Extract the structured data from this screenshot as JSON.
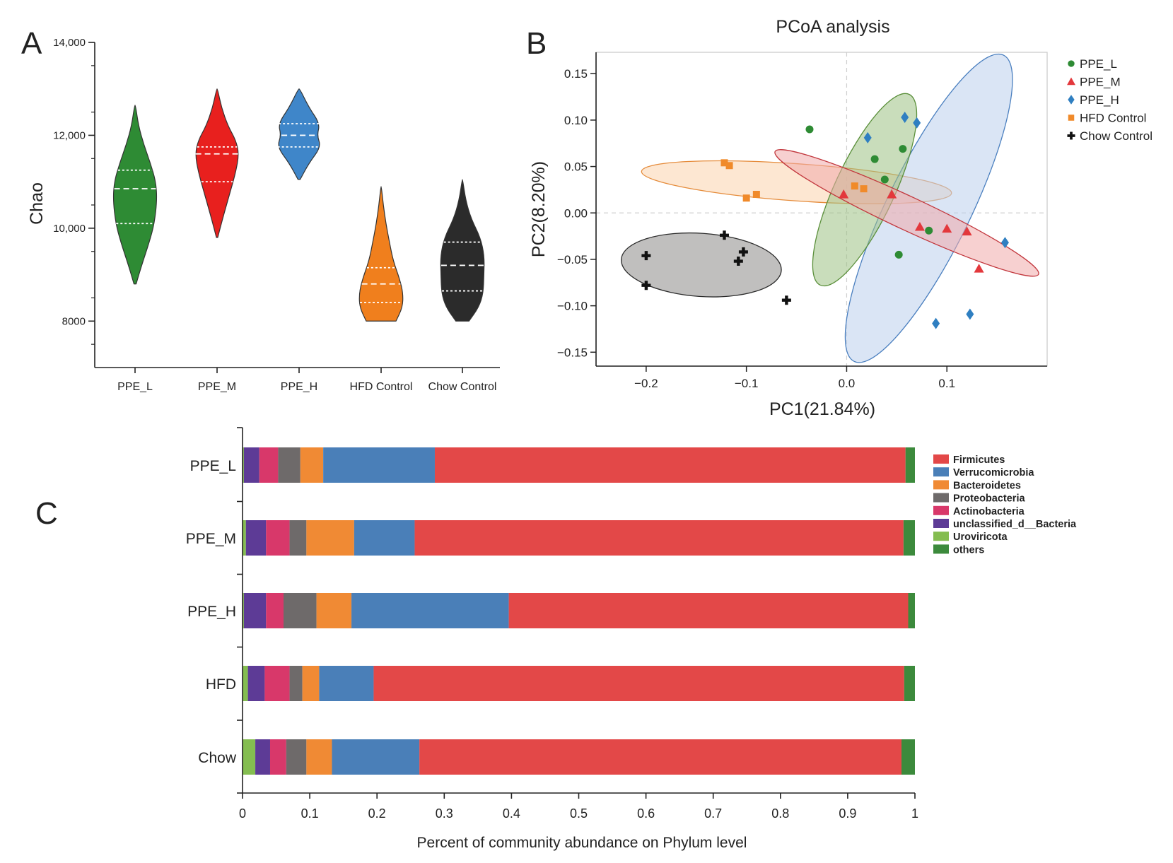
{
  "figure": {
    "panel_labels": [
      "A",
      "B",
      "C"
    ]
  },
  "chart_data": [
    {
      "type": "violin",
      "panel": "A",
      "title": "",
      "xlabel": "",
      "ylabel": "Chao",
      "ylim": [
        7000,
        14000
      ],
      "yticks": [
        8000,
        10000,
        12000,
        14000
      ],
      "ytick_labels": [
        "8000",
        "10,000",
        "12,000",
        "14,000"
      ],
      "categories": [
        "PPE_L",
        "PPE_M",
        "PPE_H",
        "HFD Control",
        "Chow Control"
      ],
      "colors": [
        "#2e8b34",
        "#e8201e",
        "#3f86c9",
        "#f07f1d",
        "#2b2b2b"
      ],
      "groups": [
        {
          "name": "PPE_L",
          "min": 8800,
          "max": 12650,
          "q1": 10100,
          "median": 10850,
          "q3": 11250,
          "profile": [
            [
              8800,
              0.05
            ],
            [
              9200,
              0.3
            ],
            [
              9700,
              0.65
            ],
            [
              10100,
              0.88
            ],
            [
              10600,
              1.0
            ],
            [
              11000,
              0.95
            ],
            [
              11400,
              0.7
            ],
            [
              11800,
              0.4
            ],
            [
              12200,
              0.16
            ],
            [
              12650,
              0.02
            ]
          ]
        },
        {
          "name": "PPE_M",
          "min": 9800,
          "max": 13000,
          "q1": 11000,
          "median": 11600,
          "q3": 11750,
          "profile": [
            [
              9800,
              0.03
            ],
            [
              10200,
              0.25
            ],
            [
              10700,
              0.55
            ],
            [
              11200,
              0.85
            ],
            [
              11600,
              1.0
            ],
            [
              11900,
              0.85
            ],
            [
              12200,
              0.5
            ],
            [
              12600,
              0.2
            ],
            [
              13000,
              0.02
            ]
          ]
        },
        {
          "name": "PPE_H",
          "min": 11050,
          "max": 13000,
          "q1": 11750,
          "median": 12000,
          "q3": 12250,
          "profile": [
            [
              11050,
              0.05
            ],
            [
              11400,
              0.45
            ],
            [
              11750,
              1.0
            ],
            [
              12000,
              0.82
            ],
            [
              12250,
              0.95
            ],
            [
              12600,
              0.45
            ],
            [
              13000,
              0.03
            ]
          ]
        },
        {
          "name": "HFD Control",
          "min": 8000,
          "max": 10900,
          "q1": 8400,
          "median": 8800,
          "q3": 9150,
          "profile": [
            [
              8000,
              0.68
            ],
            [
              8300,
              0.98
            ],
            [
              8600,
              1.0
            ],
            [
              8900,
              0.85
            ],
            [
              9300,
              0.55
            ],
            [
              9700,
              0.38
            ],
            [
              10100,
              0.22
            ],
            [
              10500,
              0.1
            ],
            [
              10900,
              0.01
            ]
          ]
        },
        {
          "name": "Chow Control",
          "min": 8000,
          "max": 11050,
          "q1": 8650,
          "median": 9200,
          "q3": 9700,
          "profile": [
            [
              8000,
              0.3
            ],
            [
              8300,
              0.75
            ],
            [
              8600,
              0.95
            ],
            [
              9000,
              0.98
            ],
            [
              9400,
              1.0
            ],
            [
              9800,
              0.82
            ],
            [
              10200,
              0.4
            ],
            [
              10600,
              0.15
            ],
            [
              11050,
              0.01
            ]
          ]
        }
      ]
    },
    {
      "type": "scatter",
      "panel": "B",
      "title": "PCoA analysis",
      "xlabel": "PC1(21.84%)",
      "ylabel": "PC2(8.20%)",
      "xlim": [
        -0.25,
        0.2
      ],
      "ylim": [
        -0.165,
        0.173
      ],
      "xticks": [
        -0.2,
        -0.1,
        0.0,
        0.1
      ],
      "xtick_labels": [
        "−0.2",
        "−0.1",
        "0.0",
        "0.1"
      ],
      "yticks": [
        -0.15,
        -0.1,
        -0.05,
        0.0,
        0.05,
        0.1,
        0.15
      ],
      "ytick_labels": [
        "−0.15",
        "−0.10",
        "−0.05",
        "0.00",
        "0.05",
        "0.10",
        "0.15"
      ],
      "legend_position": "right",
      "series": [
        {
          "name": "PPE_L",
          "marker": "circle",
          "color": "#2e8b34",
          "points": [
            [
              -0.037,
              0.09
            ],
            [
              0.028,
              0.058
            ],
            [
              0.056,
              0.069
            ],
            [
              0.038,
              0.036
            ],
            [
              0.052,
              -0.045
            ],
            [
              0.082,
              -0.019
            ]
          ],
          "ellipse": {
            "cx": 0.018,
            "cy": 0.025,
            "rx": 0.105,
            "ry": 0.032,
            "angle_deg": -65,
            "fill": "#9dc183",
            "stroke": "#5a8f3a"
          }
        },
        {
          "name": "PPE_M",
          "marker": "triangle",
          "color": "#e3383c",
          "points": [
            [
              -0.003,
              0.02
            ],
            [
              0.045,
              0.02
            ],
            [
              0.073,
              -0.015
            ],
            [
              0.1,
              -0.017
            ],
            [
              0.12,
              -0.02
            ],
            [
              0.132,
              -0.06
            ]
          ],
          "ellipse": {
            "cx": 0.06,
            "cy": 0.0,
            "rx": 0.145,
            "ry": 0.018,
            "angle_deg": 25,
            "fill": "#f1aaaa",
            "stroke": "#c2373d"
          }
        },
        {
          "name": "PPE_H",
          "marker": "diamond",
          "color": "#2f7fc1",
          "points": [
            [
              0.021,
              0.081
            ],
            [
              0.058,
              0.103
            ],
            [
              0.07,
              0.097
            ],
            [
              0.158,
              -0.032
            ],
            [
              0.123,
              -0.109
            ],
            [
              0.089,
              -0.119
            ]
          ],
          "ellipse": {
            "cx": 0.082,
            "cy": 0.005,
            "rx": 0.17,
            "ry": 0.045,
            "angle_deg": -64,
            "fill": "#bcd0ec",
            "stroke": "#4a7fbf"
          }
        },
        {
          "name": "HFD Control",
          "marker": "square",
          "color": "#f08a2a",
          "points": [
            [
              -0.122,
              0.054
            ],
            [
              -0.117,
              0.051
            ],
            [
              -0.1,
              0.016
            ],
            [
              -0.09,
              0.02
            ],
            [
              0.008,
              0.029
            ],
            [
              0.017,
              0.026
            ]
          ],
          "ellipse": {
            "cx": -0.05,
            "cy": 0.033,
            "rx": 0.155,
            "ry": 0.02,
            "angle_deg": 4,
            "fill": "#fcd3ad",
            "stroke": "#e58b3a"
          }
        },
        {
          "name": "Chow Control",
          "marker": "cross",
          "color": "#111111",
          "points": [
            [
              -0.2,
              -0.046
            ],
            [
              -0.2,
              -0.078
            ],
            [
              -0.122,
              -0.024
            ],
            [
              -0.108,
              -0.052
            ],
            [
              -0.103,
              -0.042
            ],
            [
              -0.06,
              -0.094
            ]
          ],
          "ellipse": {
            "cx": -0.145,
            "cy": -0.056,
            "rx": 0.08,
            "ry": 0.034,
            "angle_deg": 4,
            "fill": "#8d8a88",
            "stroke": "#2b2b2b"
          }
        }
      ]
    },
    {
      "type": "stacked-bar-horizontal",
      "panel": "C",
      "title": "",
      "xlabel": "Percent of community abundance on Phylum level",
      "ylabel": "",
      "xlim": [
        0,
        1
      ],
      "xticks": [
        0,
        0.1,
        0.2,
        0.3,
        0.4,
        0.5,
        0.6,
        0.7,
        0.8,
        0.9,
        1
      ],
      "xtick_labels": [
        "0",
        "0.1",
        "0.2",
        "0.3",
        "0.4",
        "0.5",
        "0.6",
        "0.7",
        "0.8",
        "0.9",
        "1"
      ],
      "categories": [
        "PPE_L",
        "PPE_M",
        "PPE_H",
        "HFD",
        "Chow"
      ],
      "stack_order": [
        "Uroviricota",
        "unclassified_d__Bacteria",
        "Actinobacteria",
        "Proteobacteria",
        "Bacteroidetes",
        "Verrucomicrobia",
        "Firmicutes",
        "others"
      ],
      "legend_order": [
        "Firmicutes",
        "Verrucomicrobia",
        "Bacteroidetes",
        "Proteobacteria",
        "Actinobacteria",
        "unclassified_d__Bacteria",
        "Uroviricota",
        "others"
      ],
      "legend_position": "right",
      "colors": {
        "Firmicutes": "#e34848",
        "Verrucomicrobia": "#4a7fb8",
        "Bacteroidetes": "#f08a34",
        "Proteobacteria": "#6e6a6a",
        "Actinobacteria": "#d8386a",
        "unclassified_d__Bacteria": "#5d3b96",
        "Uroviricota": "#84bd50",
        "others": "#3c8a3c"
      },
      "series": [
        {
          "name": "Uroviricota",
          "values": [
            0.002,
            0.005,
            0.002,
            0.008,
            0.019
          ]
        },
        {
          "name": "unclassified_d__Bacteria",
          "values": [
            0.023,
            0.03,
            0.033,
            0.025,
            0.022
          ]
        },
        {
          "name": "Actinobacteria",
          "values": [
            0.028,
            0.035,
            0.026,
            0.037,
            0.024
          ]
        },
        {
          "name": "Proteobacteria",
          "values": [
            0.033,
            0.025,
            0.049,
            0.019,
            0.03
          ]
        },
        {
          "name": "Bacteroidetes",
          "values": [
            0.034,
            0.071,
            0.052,
            0.025,
            0.038
          ]
        },
        {
          "name": "Verrucomicrobia",
          "values": [
            0.166,
            0.09,
            0.234,
            0.081,
            0.13
          ]
        },
        {
          "name": "Firmicutes",
          "values": [
            0.7,
            0.727,
            0.594,
            0.789,
            0.717
          ]
        },
        {
          "name": "others",
          "values": [
            0.014,
            0.017,
            0.01,
            0.016,
            0.02
          ]
        }
      ]
    }
  ]
}
